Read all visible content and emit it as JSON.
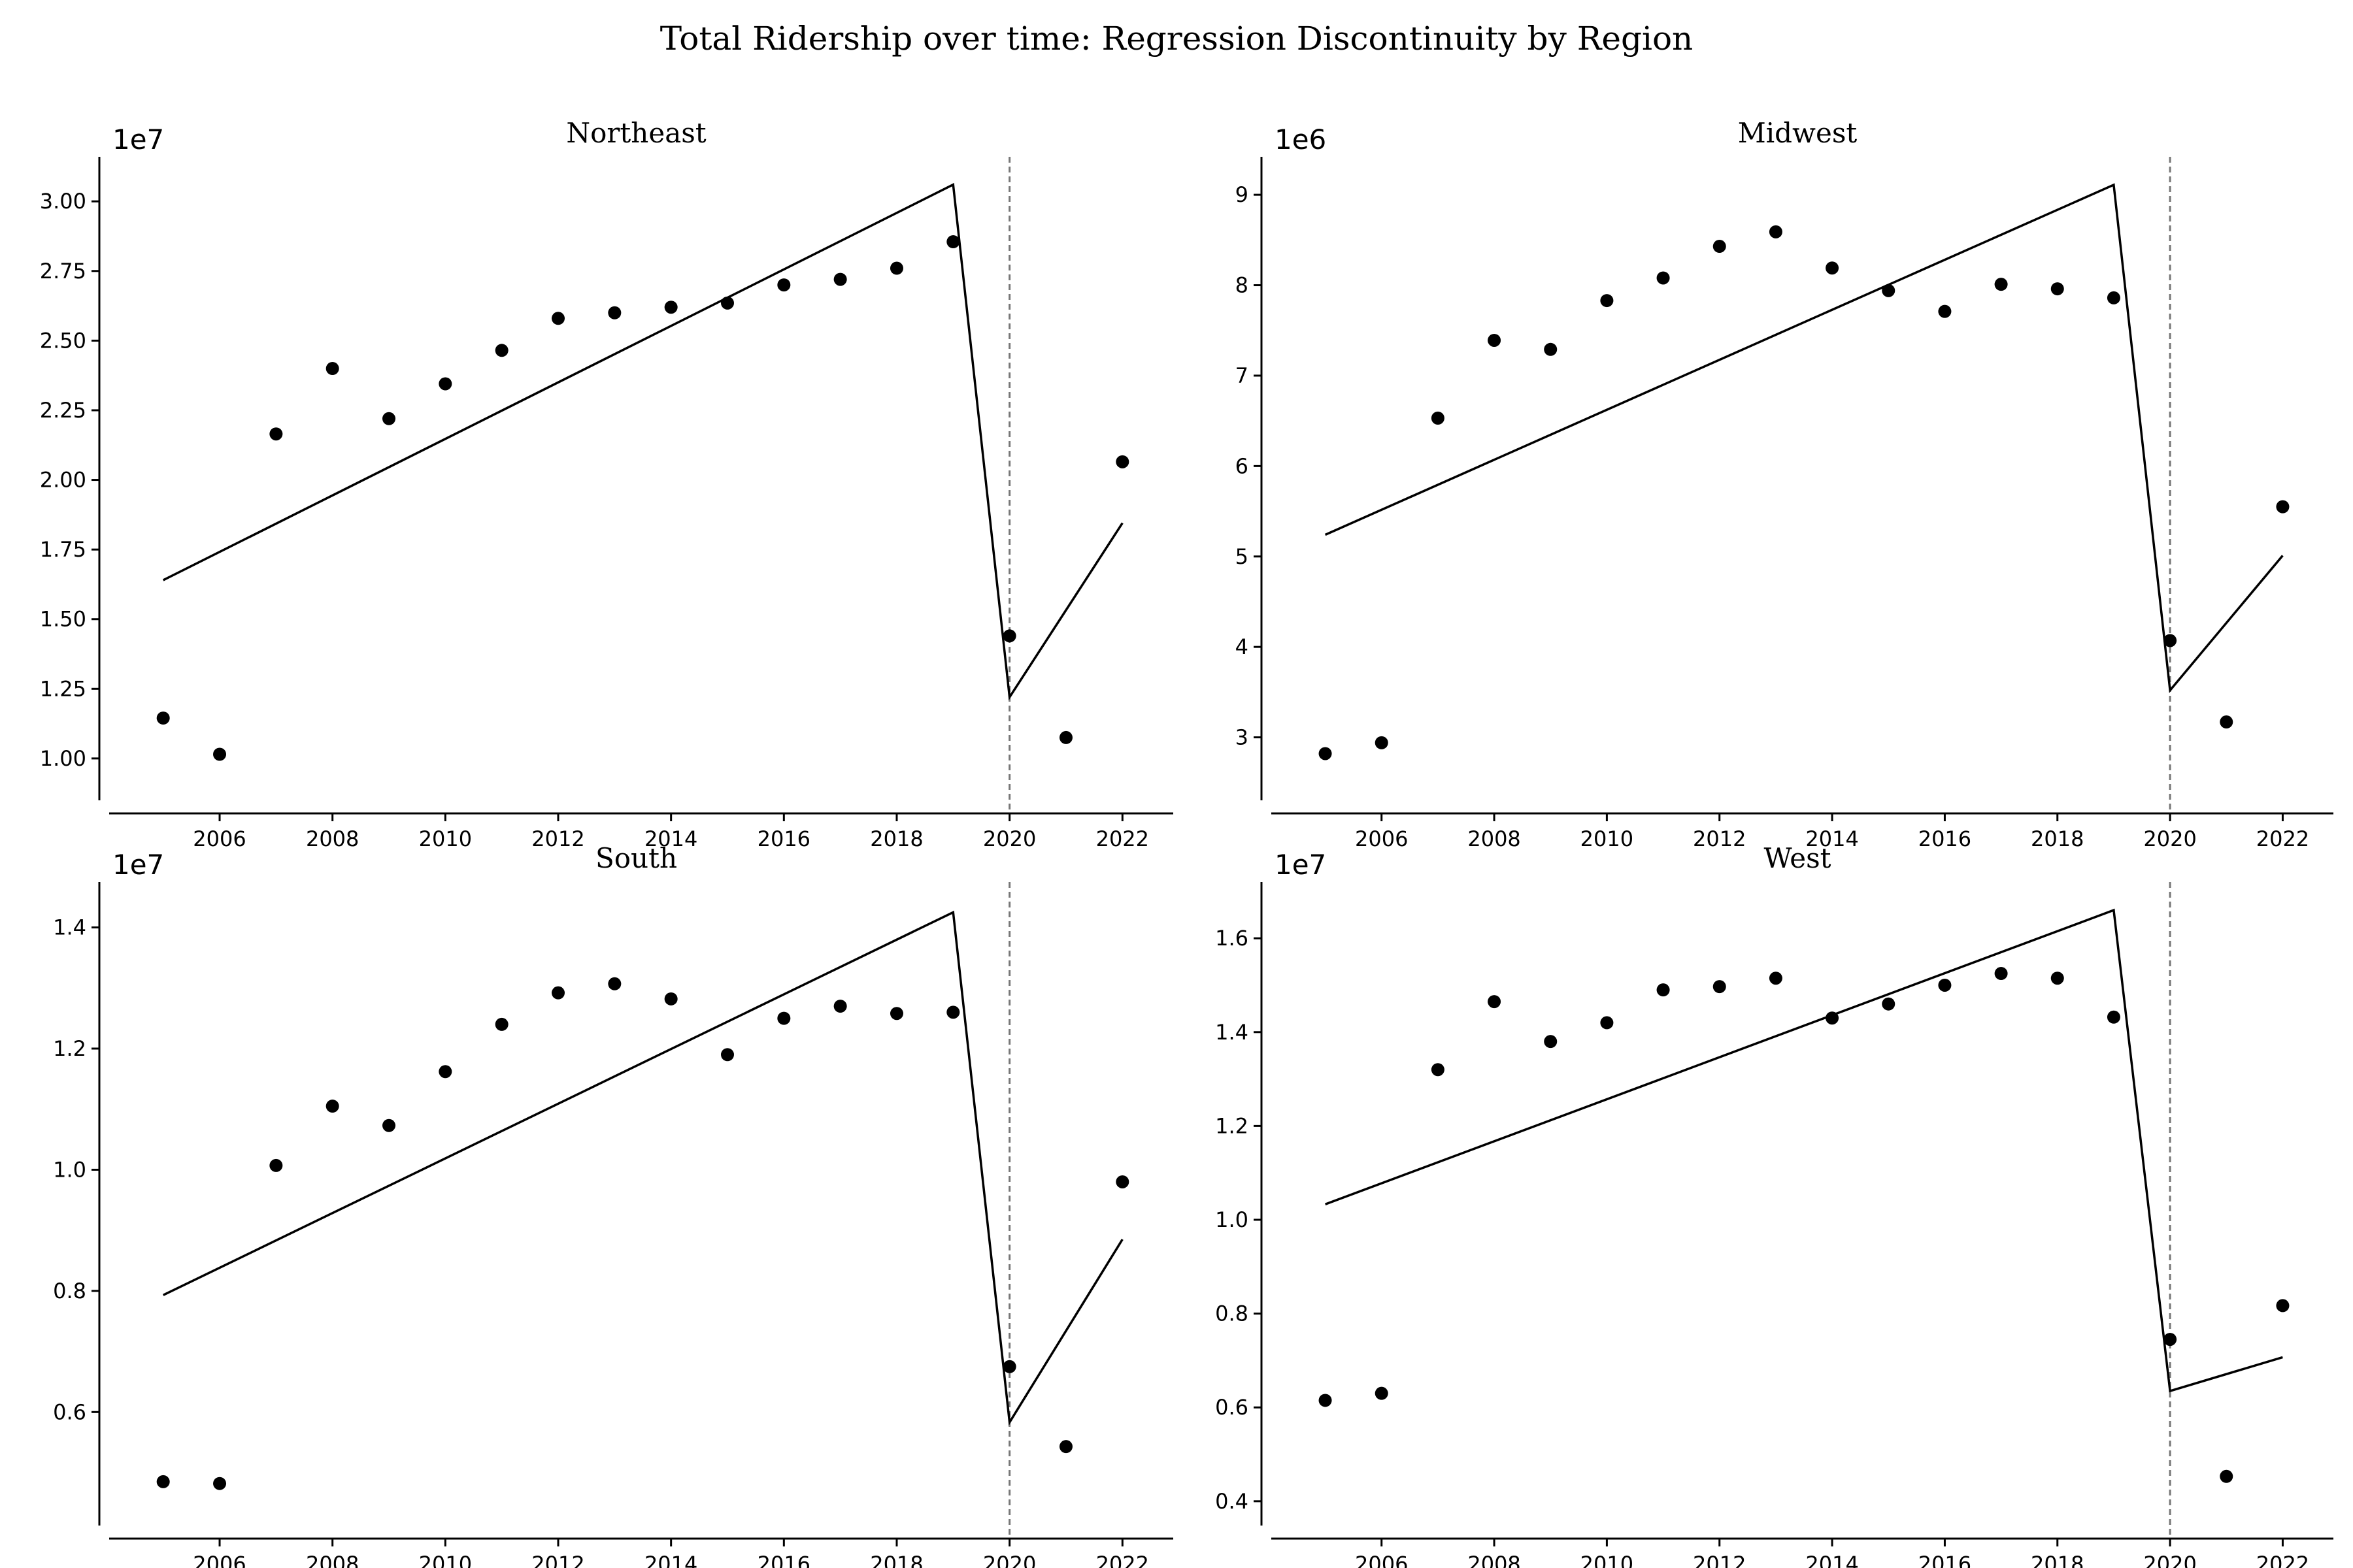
{
  "title": "Total Ridership over time: Regression Discontinuity by Region",
  "chart_data": [
    {
      "type": "scatter",
      "title": "Northeast",
      "offset_label": "1e7",
      "xlabel": "",
      "ylabel": "",
      "x_ticks": [
        2006,
        2008,
        2010,
        2012,
        2014,
        2016,
        2018,
        2020,
        2022
      ],
      "y_ticks": [
        "1.00",
        "1.25",
        "1.50",
        "1.75",
        "2.00",
        "2.25",
        "2.50",
        "2.75",
        "3.00"
      ],
      "xlim": [
        2004.1,
        2022.9
      ],
      "ylim": [
        0.92,
        3.16
      ],
      "cutoff": 2020,
      "series": [
        {
          "kind": "points",
          "x": [
            2005,
            2006,
            2007,
            2008,
            2009,
            2010,
            2011,
            2012,
            2013,
            2014,
            2015,
            2016,
            2017,
            2018,
            2019,
            2020,
            2021,
            2022
          ],
          "y": [
            1.145,
            1.015,
            2.165,
            2.4,
            2.22,
            2.345,
            2.465,
            2.58,
            2.6,
            2.62,
            2.635,
            2.7,
            2.72,
            2.76,
            2.855,
            1.44,
            1.075,
            2.065
          ]
        },
        {
          "kind": "fit",
          "x": [
            2005,
            2019,
            2020,
            2022
          ],
          "y": [
            1.64,
            3.06,
            1.22,
            1.845
          ]
        }
      ],
      "grid": false,
      "legend": "none"
    },
    {
      "type": "scatter",
      "title": "Midwest",
      "offset_label": "1e6",
      "xlabel": "",
      "ylabel": "",
      "x_ticks": [
        2006,
        2008,
        2010,
        2012,
        2014,
        2016,
        2018,
        2020,
        2022
      ],
      "y_ticks": [
        "3",
        "4",
        "5",
        "6",
        "7",
        "8",
        "9"
      ],
      "xlim": [
        2004.1,
        2022.9
      ],
      "ylim": [
        2.52,
        9.42
      ],
      "cutoff": 2020,
      "series": [
        {
          "kind": "points",
          "x": [
            2005,
            2006,
            2007,
            2008,
            2009,
            2010,
            2011,
            2012,
            2013,
            2014,
            2015,
            2016,
            2017,
            2018,
            2019,
            2020,
            2021,
            2022
          ],
          "y": [
            2.82,
            2.94,
            6.53,
            7.39,
            7.29,
            7.83,
            8.08,
            8.43,
            8.59,
            8.19,
            7.94,
            7.71,
            8.01,
            7.96,
            7.86,
            4.07,
            3.17,
            5.55
          ]
        },
        {
          "kind": "fit",
          "x": [
            2005,
            2019,
            2020,
            2022
          ],
          "y": [
            5.24,
            9.11,
            3.52,
            5.01
          ]
        }
      ],
      "grid": false,
      "legend": "none"
    },
    {
      "type": "scatter",
      "title": "South",
      "offset_label": "1e7",
      "xlabel": "",
      "ylabel": "",
      "x_ticks": [
        2006,
        2008,
        2010,
        2012,
        2014,
        2016,
        2018,
        2020,
        2022
      ],
      "y_ticks": [
        "0.6",
        "0.8",
        "1.0",
        "1.2",
        "1.4"
      ],
      "xlim": [
        2004.1,
        2022.9
      ],
      "ylim": [
        0.445,
        1.475
      ],
      "cutoff": 2020,
      "series": [
        {
          "kind": "points",
          "x": [
            2005,
            2006,
            2007,
            2008,
            2009,
            2010,
            2011,
            2012,
            2013,
            2014,
            2015,
            2016,
            2017,
            2018,
            2019,
            2020,
            2021,
            2022
          ],
          "y": [
            0.485,
            0.482,
            1.007,
            1.105,
            1.073,
            1.162,
            1.24,
            1.292,
            1.307,
            1.282,
            1.19,
            1.25,
            1.27,
            1.258,
            1.26,
            0.675,
            0.543,
            0.98
          ]
        },
        {
          "kind": "fit",
          "x": [
            2005,
            2019,
            2020,
            2022
          ],
          "y": [
            0.793,
            1.425,
            0.583,
            0.885
          ]
        }
      ],
      "grid": false,
      "legend": "none"
    },
    {
      "type": "scatter",
      "title": "West",
      "offset_label": "1e7",
      "xlabel": "",
      "ylabel": "",
      "x_ticks": [
        2006,
        2008,
        2010,
        2012,
        2014,
        2016,
        2018,
        2020,
        2022
      ],
      "y_ticks": [
        "0.4",
        "0.6",
        "0.8",
        "1.0",
        "1.2",
        "1.4",
        "1.6"
      ],
      "xlim": [
        2004.1,
        2022.9
      ],
      "ylim": [
        0.39,
        1.72
      ],
      "cutoff": 2020,
      "series": [
        {
          "kind": "points",
          "x": [
            2005,
            2006,
            2007,
            2008,
            2009,
            2010,
            2011,
            2012,
            2013,
            2014,
            2015,
            2016,
            2017,
            2018,
            2019,
            2020,
            2021,
            2022
          ],
          "y": [
            0.615,
            0.63,
            1.32,
            1.465,
            1.38,
            1.42,
            1.49,
            1.497,
            1.515,
            1.43,
            1.46,
            1.5,
            1.525,
            1.515,
            1.432,
            0.745,
            0.453,
            0.817
          ]
        },
        {
          "kind": "fit",
          "x": [
            2005,
            2019,
            2020,
            2022
          ],
          "y": [
            1.033,
            1.66,
            0.635,
            0.707
          ]
        }
      ],
      "grid": false,
      "legend": "none"
    }
  ]
}
